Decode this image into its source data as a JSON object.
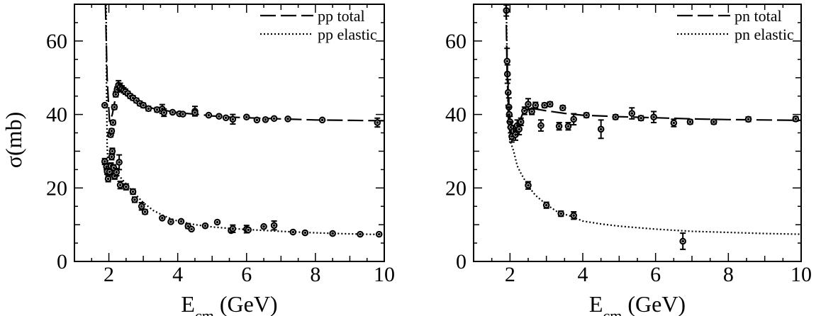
{
  "chart_data": [
    {
      "type": "scatter",
      "panel": "left",
      "xlabel": "E_cm (GeV)",
      "xlabel_main": "E",
      "xlabel_sub": "cm",
      "xlabel_unit": "(GeV)",
      "ylabel": "σ(mb)",
      "xlim": [
        1,
        10
      ],
      "ylim": [
        0,
        70
      ],
      "xticks": [
        2,
        4,
        6,
        8,
        10
      ],
      "yticks": [
        0,
        20,
        40,
        60
      ],
      "legend": "top-right",
      "grid": false,
      "series": [
        {
          "name": "pp total",
          "style": "long-dash",
          "curve": [
            [
              1.9,
              70
            ],
            [
              1.95,
              50
            ],
            [
              2.02,
              38
            ],
            [
              2.1,
              40
            ],
            [
              2.2,
              45
            ],
            [
              2.28,
              47.5
            ],
            [
              2.4,
              47.3
            ],
            [
              2.6,
              45.8
            ],
            [
              2.8,
              44
            ],
            [
              3.0,
              42.5
            ],
            [
              3.3,
              41.6
            ],
            [
              3.7,
              41
            ],
            [
              4.0,
              40.5
            ],
            [
              4.5,
              40.1
            ],
            [
              5.0,
              39.6
            ],
            [
              5.5,
              39.3
            ],
            [
              6.0,
              39.1
            ],
            [
              7.0,
              38.8
            ],
            [
              8.0,
              38.5
            ],
            [
              9.0,
              38.4
            ],
            [
              10.0,
              38.3
            ]
          ],
          "points": [
            [
              1.88,
              42.5,
              0.3
            ],
            [
              2.05,
              34.5,
              0.6
            ],
            [
              2.08,
              35.5,
              0.6
            ],
            [
              2.12,
              37.8,
              0.6
            ],
            [
              2.16,
              42,
              0.6
            ],
            [
              2.2,
              45.5,
              0.7
            ],
            [
              2.24,
              46.8,
              0.7
            ],
            [
              2.28,
              48,
              1.2
            ],
            [
              2.33,
              47.5,
              1.0
            ],
            [
              2.38,
              47,
              0.8
            ],
            [
              2.43,
              46.6,
              0.7
            ],
            [
              2.48,
              46.2,
              0.7
            ],
            [
              2.55,
              45.7,
              0.6
            ],
            [
              2.62,
              45,
              0.6
            ],
            [
              2.7,
              44.5,
              0.6
            ],
            [
              2.8,
              43.8,
              0.6
            ],
            [
              2.9,
              43,
              0.6
            ],
            [
              3.0,
              42.5,
              0.6
            ],
            [
              3.15,
              41.6,
              0.6
            ],
            [
              3.4,
              41.3,
              0.6
            ],
            [
              3.55,
              41.5,
              1.2
            ],
            [
              3.6,
              40.5,
              1.0
            ],
            [
              3.85,
              40.6,
              0.5
            ],
            [
              4.05,
              40.2,
              0.5
            ],
            [
              4.15,
              40.1,
              0.5
            ],
            [
              4.5,
              40.9,
              1.3
            ],
            [
              4.5,
              40.5,
              0.6
            ],
            [
              4.9,
              39.8,
              0.5
            ],
            [
              5.2,
              39.5,
              0.5
            ],
            [
              5.4,
              39.1,
              0.5
            ],
            [
              5.6,
              38.7,
              1.3
            ],
            [
              6.0,
              39.3,
              0.5
            ],
            [
              6.3,
              38.5,
              0.5
            ],
            [
              6.55,
              38.6,
              0.5
            ],
            [
              6.8,
              38.9,
              0.5
            ],
            [
              7.2,
              38.8,
              0.5
            ],
            [
              8.2,
              38.5,
              0.4
            ],
            [
              9.8,
              37.8,
              1.2
            ]
          ]
        },
        {
          "name": "pp elastic",
          "style": "dotted",
          "curve": [
            [
              1.92,
              70
            ],
            [
              1.93,
              50
            ],
            [
              1.95,
              32
            ],
            [
              1.98,
              24
            ],
            [
              2.02,
              22.5
            ],
            [
              2.1,
              23.2
            ],
            [
              2.2,
              23.5
            ],
            [
              2.3,
              23.3
            ],
            [
              2.4,
              22.2
            ],
            [
              2.6,
              20
            ],
            [
              2.8,
              18
            ],
            [
              3.0,
              16
            ],
            [
              3.3,
              13.8
            ],
            [
              3.7,
              12
            ],
            [
              4.0,
              11
            ],
            [
              4.5,
              10
            ],
            [
              5.0,
              9.4
            ],
            [
              5.5,
              9
            ],
            [
              6.0,
              8.7
            ],
            [
              7.0,
              8.2
            ],
            [
              8.0,
              7.8
            ],
            [
              9.0,
              7.5
            ],
            [
              10.0,
              7.3
            ]
          ],
          "points": [
            [
              1.88,
              27.2,
              0.8
            ],
            [
              1.93,
              25.8,
              0.8
            ],
            [
              1.95,
              24.5,
              0.8
            ],
            [
              1.98,
              22.5,
              0.8
            ],
            [
              2.02,
              24.4,
              0.8
            ],
            [
              2.06,
              26,
              0.8
            ],
            [
              2.08,
              28.5,
              0.8
            ],
            [
              2.1,
              30,
              0.8
            ],
            [
              2.14,
              25.5,
              0.8
            ],
            [
              2.17,
              23.2,
              0.8
            ],
            [
              2.22,
              24.3,
              1.0
            ],
            [
              2.3,
              27,
              2.0
            ],
            [
              2.33,
              20.8,
              1.0
            ],
            [
              2.5,
              20.3,
              0.8
            ],
            [
              2.7,
              19,
              0.7
            ],
            [
              2.75,
              16.8,
              0.7
            ],
            [
              2.95,
              15,
              1.0
            ],
            [
              3.05,
              13.5,
              0.6
            ],
            [
              3.55,
              11.8,
              0.5
            ],
            [
              3.8,
              10.8,
              0.5
            ],
            [
              4.1,
              10.9,
              0.5
            ],
            [
              4.3,
              9.6,
              0.6
            ],
            [
              4.4,
              8.8,
              0.5
            ],
            [
              4.8,
              9.7,
              0.5
            ],
            [
              5.15,
              10.7,
              0.5
            ],
            [
              5.55,
              8.4,
              0.5
            ],
            [
              5.6,
              8.9,
              1.0
            ],
            [
              6.0,
              8.8,
              1.0
            ],
            [
              6.05,
              8.6,
              0.5
            ],
            [
              6.5,
              9.5,
              0.5
            ],
            [
              6.8,
              9.8,
              1.2
            ],
            [
              7.35,
              8.0,
              0.5
            ],
            [
              7.7,
              7.8,
              0.5
            ],
            [
              8.5,
              7.6,
              0.5
            ],
            [
              9.3,
              7.4,
              0.4
            ],
            [
              9.85,
              7.4,
              0.4
            ]
          ]
        }
      ]
    },
    {
      "type": "scatter",
      "panel": "right",
      "xlabel": "E_cm (GeV)",
      "xlabel_main": "E",
      "xlabel_sub": "cm",
      "xlabel_unit": "(GeV)",
      "ylabel": "σ(mb)",
      "xlim": [
        1,
        10
      ],
      "ylim": [
        0,
        70
      ],
      "xticks": [
        2,
        4,
        6,
        8,
        10
      ],
      "yticks": [
        0,
        20,
        40,
        60
      ],
      "legend": "top-right",
      "grid": false,
      "series": [
        {
          "name": "pn total",
          "style": "long-dash",
          "curve": [
            [
              1.89,
              70
            ],
            [
              1.92,
              52
            ],
            [
              1.96,
              40
            ],
            [
              2.0,
              37
            ],
            [
              2.05,
              35.5
            ],
            [
              2.1,
              34.8
            ],
            [
              2.2,
              36
            ],
            [
              2.3,
              39
            ],
            [
              2.4,
              41.5
            ],
            [
              2.5,
              42
            ],
            [
              2.7,
              41.5
            ],
            [
              3.0,
              41
            ],
            [
              3.5,
              40.3
            ],
            [
              4.0,
              39.8
            ],
            [
              5.0,
              39.4
            ],
            [
              6.0,
              39.1
            ],
            [
              7.0,
              38.8
            ],
            [
              8.0,
              38.6
            ],
            [
              9.0,
              38.5
            ],
            [
              10.0,
              38.4
            ]
          ],
          "points": [
            [
              1.9,
              68.3,
              1.5
            ],
            [
              1.92,
              54.5,
              3.5
            ],
            [
              1.93,
              51,
              2.5
            ],
            [
              1.95,
              46,
              3.5
            ],
            [
              1.97,
              42,
              2.5
            ],
            [
              1.98,
              40,
              2.0
            ],
            [
              2.0,
              38,
              1.5
            ],
            [
              2.02,
              36.5,
              1.5
            ],
            [
              2.05,
              34,
              1.5
            ],
            [
              2.1,
              35.5,
              1.5
            ],
            [
              2.15,
              34.5,
              1.5
            ],
            [
              2.2,
              37,
              1.5
            ],
            [
              2.25,
              36,
              1.5
            ],
            [
              2.3,
              38,
              1.0
            ],
            [
              2.4,
              41,
              1.0
            ],
            [
              2.5,
              42.8,
              1.5
            ],
            [
              2.6,
              40.8,
              0.8
            ],
            [
              2.7,
              42.5,
              0.8
            ],
            [
              2.85,
              37,
              1.5
            ],
            [
              2.95,
              42.5,
              0.6
            ],
            [
              3.1,
              42.8,
              0.6
            ],
            [
              3.35,
              36.8,
              1.0
            ],
            [
              3.45,
              41.8,
              0.6
            ],
            [
              3.6,
              36.8,
              1.0
            ],
            [
              3.75,
              38.7,
              1.5
            ],
            [
              4.1,
              39.8,
              0.6
            ],
            [
              4.5,
              36,
              2.5
            ],
            [
              4.9,
              39.3,
              0.6
            ],
            [
              5.35,
              40.3,
              1.5
            ],
            [
              5.6,
              39,
              0.6
            ],
            [
              5.95,
              39.3,
              1.5
            ],
            [
              6.5,
              37.7,
              1.0
            ],
            [
              6.95,
              38,
              0.6
            ],
            [
              7.6,
              38,
              0.6
            ],
            [
              8.55,
              38.7,
              0.6
            ],
            [
              9.85,
              38.8,
              0.6
            ]
          ]
        },
        {
          "name": "pn elastic",
          "style": "dotted",
          "curve": [
            [
              1.9,
              70
            ],
            [
              1.92,
              55
            ],
            [
              1.95,
              40
            ],
            [
              2.0,
              33
            ],
            [
              2.1,
              30
            ],
            [
              2.2,
              26
            ],
            [
              2.3,
              24
            ],
            [
              2.5,
              20.5
            ],
            [
              2.7,
              18
            ],
            [
              3.0,
              15.5
            ],
            [
              3.3,
              13.5
            ],
            [
              3.7,
              12.2
            ],
            [
              4.0,
              11
            ],
            [
              4.5,
              10.2
            ],
            [
              5.0,
              9.6
            ],
            [
              6.0,
              8.8
            ],
            [
              7.0,
              8.2
            ],
            [
              8.0,
              7.9
            ],
            [
              9.0,
              7.6
            ],
            [
              10.0,
              7.4
            ]
          ],
          "points": [
            [
              2.5,
              20.7,
              1.0
            ],
            [
              3.0,
              15.3,
              0.8
            ],
            [
              3.4,
              13,
              0.7
            ],
            [
              3.75,
              12.5,
              1.0
            ],
            [
              6.75,
              5.5,
              2.2
            ]
          ]
        }
      ]
    }
  ]
}
